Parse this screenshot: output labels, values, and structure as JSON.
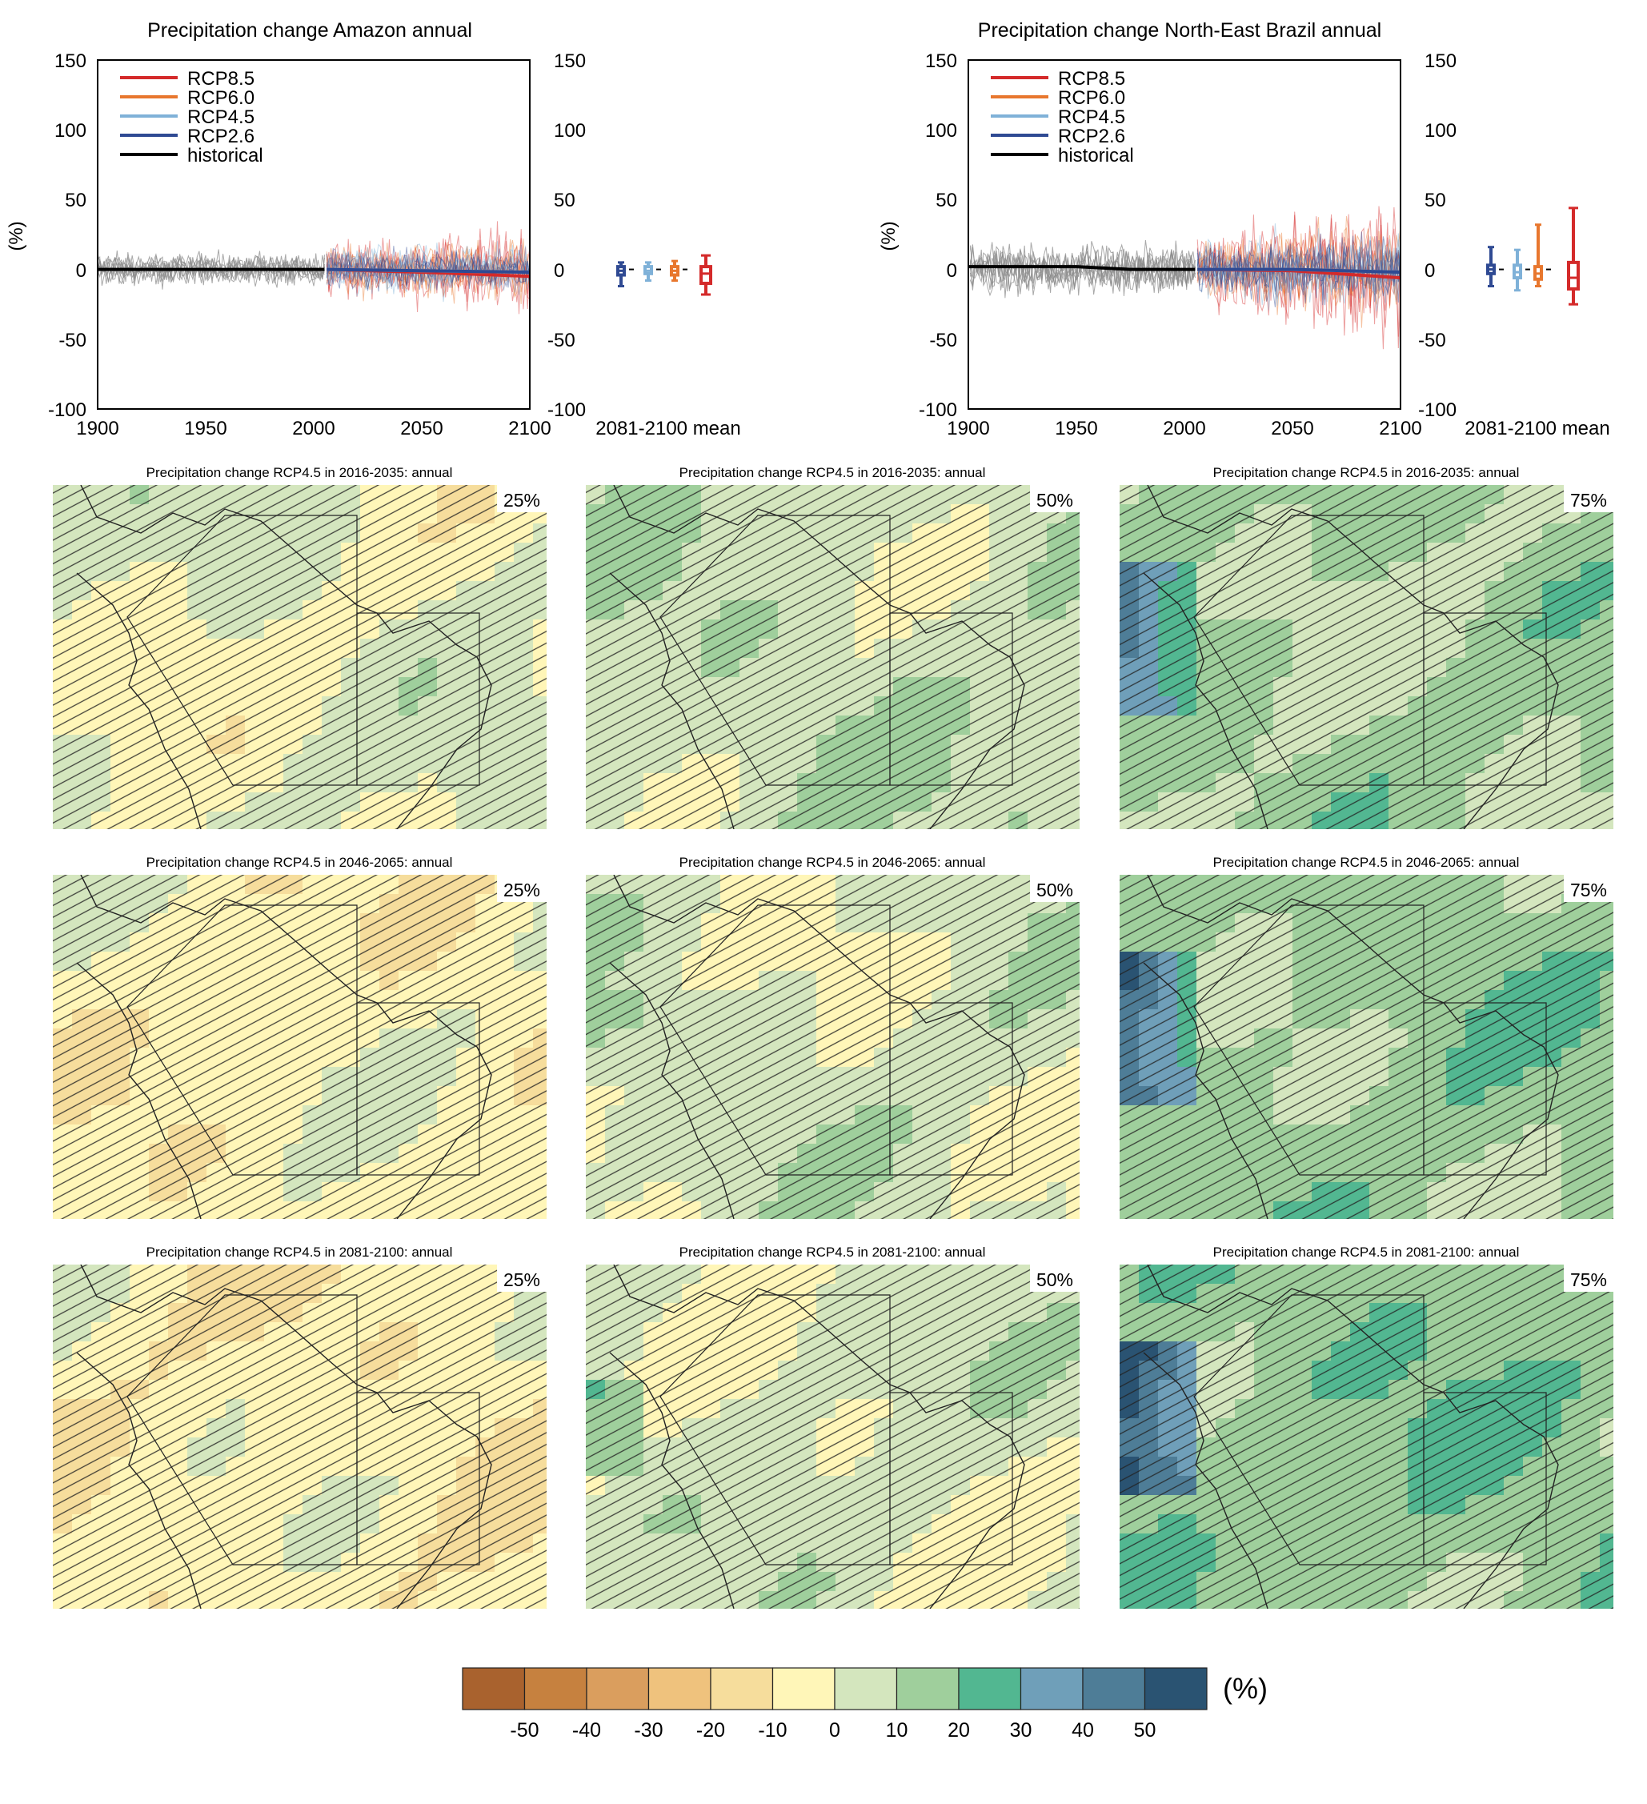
{
  "colors": {
    "rcp85": "#d42a2a",
    "rcp60": "#e8772e",
    "rcp45": "#7fb1d8",
    "rcp26": "#2f4a93",
    "historical": "#000000",
    "hist_ens": "#8c8c8c"
  },
  "timeseries": [
    {
      "title": "Precipitation change Amazon annual",
      "ylabel": "(%)",
      "yticks": [
        "150",
        "100",
        "50",
        "0",
        "-50",
        "-100"
      ],
      "xticks": [
        "1900",
        "1950",
        "2000",
        "2050",
        "2100"
      ],
      "boxlabel": "2081-2100 mean",
      "legend": [
        "RCP8.5",
        "RCP6.0",
        "RCP4.5",
        "RCP2.6",
        "historical"
      ]
    },
    {
      "title": "Precipitation change North-East Brazil annual",
      "ylabel": "(%)",
      "yticks": [
        "150",
        "100",
        "50",
        "0",
        "-50",
        "-100"
      ],
      "xticks": [
        "1900",
        "1950",
        "2000",
        "2050",
        "2100"
      ],
      "boxlabel": "2081-2100 mean",
      "legend": [
        "RCP8.5",
        "RCP6.0",
        "RCP4.5",
        "RCP2.6",
        "historical"
      ]
    }
  ],
  "maps": {
    "titles": [
      "Precipitation change RCP4.5 in 2016-2035: annual",
      "Precipitation change RCP4.5 in 2046-2065: annual",
      "Precipitation change RCP4.5 in 2081-2100: annual"
    ],
    "percentiles": [
      "25%",
      "50%",
      "75%"
    ]
  },
  "colorbar": {
    "colors": [
      "#a9622e",
      "#c6813f",
      "#da9e5e",
      "#efc27d",
      "#f6dd9c",
      "#fff6b8",
      "#d4e6be",
      "#9fcf9c",
      "#52b791",
      "#6f9fb9",
      "#4e7d97",
      "#2a5372"
    ],
    "labels": [
      "-50",
      "-40",
      "-30",
      "-20",
      "-10",
      "0",
      "10",
      "20",
      "30",
      "40",
      "50"
    ],
    "unit": "(%)"
  },
  "chart_data": [
    {
      "type": "line",
      "title": "Precipitation change Amazon annual",
      "ylabel": "(%)",
      "xlim": [
        1900,
        2100
      ],
      "ylim": [
        -100,
        150
      ],
      "series": [
        {
          "name": "historical",
          "x": [
            1900,
            1925,
            1950,
            1975,
            2005
          ],
          "values": [
            0,
            0,
            0,
            0,
            0
          ]
        },
        {
          "name": "RCP2.6",
          "x": [
            2006,
            2050,
            2100
          ],
          "values": [
            0,
            -1,
            -2
          ]
        },
        {
          "name": "RCP4.5",
          "x": [
            2006,
            2050,
            2100
          ],
          "values": [
            0,
            -1,
            -2
          ]
        },
        {
          "name": "RCP6.0",
          "x": [
            2006,
            2050,
            2100
          ],
          "values": [
            0,
            -1,
            -2
          ]
        },
        {
          "name": "RCP8.5",
          "x": [
            2006,
            2050,
            2100
          ],
          "values": [
            0,
            -2,
            -5
          ]
        }
      ],
      "boxplots_2081_2100": [
        {
          "name": "RCP2.6",
          "min": -12,
          "q1": -4,
          "median": -1,
          "q3": 2,
          "max": 5
        },
        {
          "name": "RCP4.5",
          "min": -8,
          "q1": -3,
          "median": -1,
          "q3": 2,
          "max": 5
        },
        {
          "name": "RCP6.0",
          "min": -8,
          "q1": -4,
          "median": -1,
          "q3": 2,
          "max": 6
        },
        {
          "name": "RCP8.5",
          "min": -18,
          "q1": -10,
          "median": -3,
          "q3": 2,
          "max": 10
        }
      ]
    },
    {
      "type": "line",
      "title": "Precipitation change North-East Brazil annual",
      "ylabel": "(%)",
      "xlim": [
        1900,
        2100
      ],
      "ylim": [
        -100,
        150
      ],
      "series": [
        {
          "name": "historical",
          "x": [
            1900,
            1925,
            1950,
            1975,
            2005
          ],
          "values": [
            2,
            2,
            2,
            0,
            0
          ]
        },
        {
          "name": "RCP2.6",
          "x": [
            2006,
            2050,
            2100
          ],
          "values": [
            0,
            0,
            -2
          ]
        },
        {
          "name": "RCP4.5",
          "x": [
            2006,
            2050,
            2100
          ],
          "values": [
            0,
            0,
            -2
          ]
        },
        {
          "name": "RCP6.0",
          "x": [
            2006,
            2050,
            2100
          ],
          "values": [
            0,
            0,
            -2
          ]
        },
        {
          "name": "RCP8.5",
          "x": [
            2006,
            2050,
            2100
          ],
          "values": [
            0,
            -1,
            -6
          ]
        }
      ],
      "boxplots_2081_2100": [
        {
          "name": "RCP2.6",
          "min": -12,
          "q1": -3,
          "median": 0,
          "q3": 3,
          "max": 16
        },
        {
          "name": "RCP4.5",
          "min": -15,
          "q1": -6,
          "median": -2,
          "q3": 3,
          "max": 14
        },
        {
          "name": "RCP6.0",
          "min": -12,
          "q1": -7,
          "median": -3,
          "q3": 2,
          "max": 32
        },
        {
          "name": "RCP8.5",
          "min": -25,
          "q1": -14,
          "median": -6,
          "q3": 5,
          "max": 44
        }
      ]
    }
  ]
}
